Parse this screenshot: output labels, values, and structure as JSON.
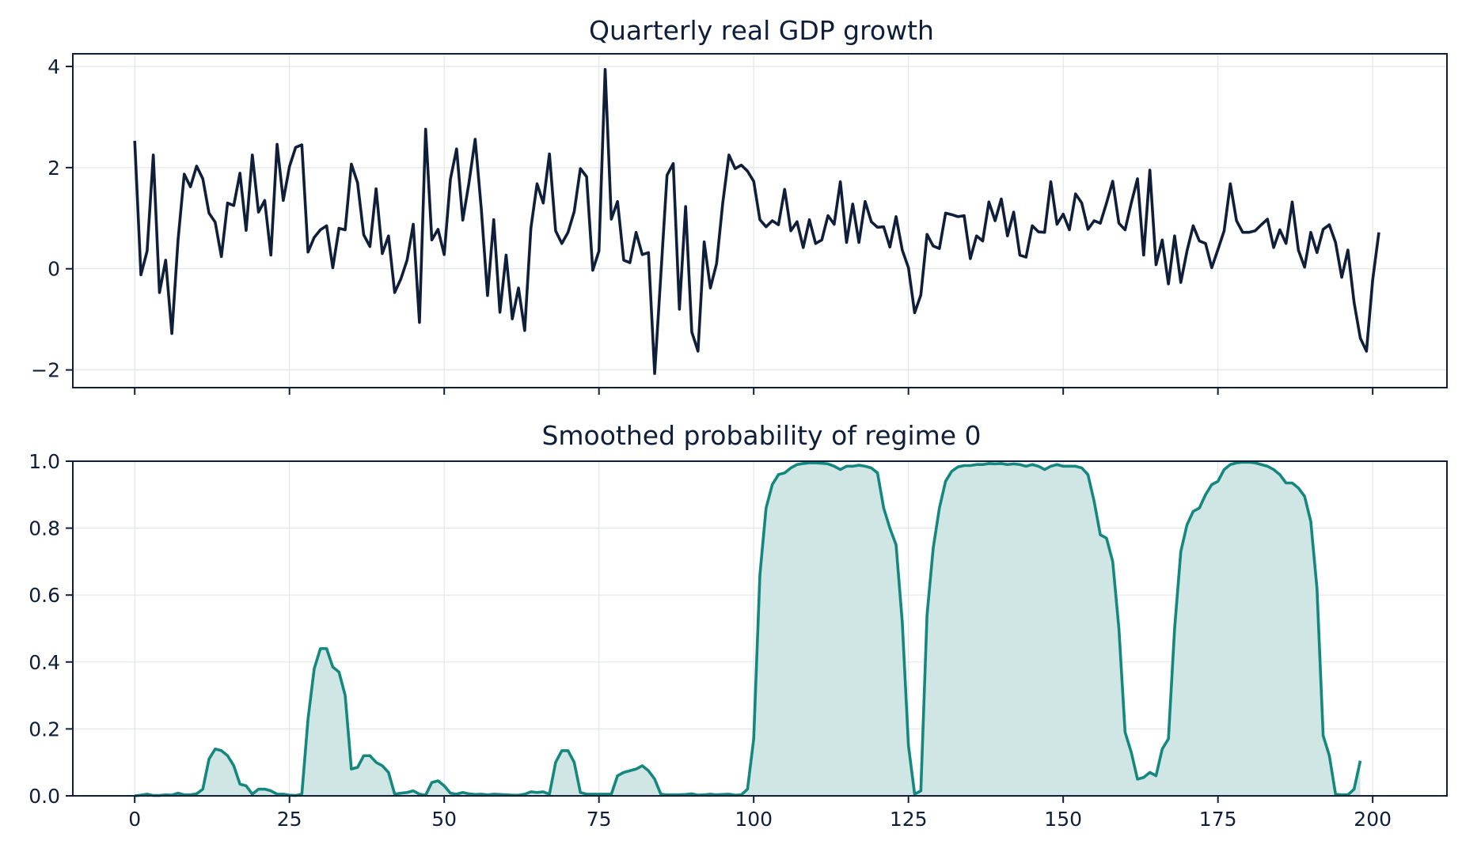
{
  "chart_data": [
    {
      "type": "line",
      "title": "Quarterly real GDP growth",
      "xlabel": "",
      "ylabel": "",
      "xlim": [
        -10,
        212
      ],
      "ylim": [
        -2.35,
        4.25
      ],
      "yticks": [
        -2,
        0,
        2,
        4
      ],
      "ytick_labels": [
        "−2",
        "0",
        "2",
        "4"
      ],
      "xticks": [
        0,
        25,
        50,
        75,
        100,
        125,
        150,
        175,
        200
      ],
      "xtick_labels_visible": false,
      "grid": true,
      "line_color": "#0f1f3a",
      "series": [
        {
          "values": [
            2.53,
            -0.12,
            0.35,
            2.25,
            -0.47,
            0.17,
            -1.28,
            0.57,
            1.87,
            1.62,
            2.03,
            1.78,
            1.1,
            0.92,
            0.24,
            1.3,
            1.25,
            1.89,
            0.76,
            2.25,
            1.12,
            1.35,
            0.27,
            2.46,
            1.35,
            2.02,
            2.4,
            2.45,
            0.33,
            0.62,
            0.77,
            0.85,
            0.02,
            0.8,
            0.77,
            2.07,
            1.7,
            0.67,
            0.44,
            1.58,
            0.3,
            0.65,
            -0.47,
            -0.2,
            0.17,
            0.88,
            -1.06,
            2.76,
            0.57,
            0.78,
            0.28,
            1.77,
            2.37,
            0.96,
            1.7,
            2.56,
            1.17,
            -0.53,
            0.97,
            -0.86,
            0.27,
            -0.99,
            -0.38,
            -1.22,
            0.8,
            1.68,
            1.3,
            2.27,
            0.75,
            0.5,
            0.72,
            1.13,
            1.98,
            1.82,
            -0.03,
            0.35,
            3.94,
            0.98,
            1.33,
            0.17,
            0.12,
            0.72,
            0.28,
            0.32,
            -2.07,
            -0.12,
            1.85,
            2.08,
            -0.8,
            1.23,
            -1.25,
            -1.63,
            0.53,
            -0.38,
            0.1,
            1.3,
            2.25,
            1.98,
            2.05,
            1.93,
            1.73,
            0.97,
            0.83,
            0.95,
            0.87,
            1.57,
            0.75,
            0.93,
            0.42,
            0.97,
            0.5,
            0.57,
            1.05,
            0.88,
            1.72,
            0.52,
            1.28,
            0.52,
            1.33,
            0.93,
            0.82,
            0.83,
            0.43,
            1.03,
            0.37,
            0.02,
            -0.87,
            -0.52,
            0.68,
            0.45,
            0.4,
            1.1,
            1.07,
            1.03,
            1.05,
            0.2,
            0.65,
            0.55,
            1.32,
            0.95,
            1.38,
            0.65,
            1.12,
            0.27,
            0.23,
            0.85,
            0.73,
            0.72,
            1.72,
            0.88,
            1.08,
            0.77,
            1.48,
            1.3,
            0.78,
            0.95,
            0.9,
            1.3,
            1.73,
            0.9,
            0.77,
            1.3,
            1.78,
            0.27,
            1.95,
            0.08,
            0.57,
            -0.3,
            0.65,
            -0.27,
            0.35,
            0.85,
            0.55,
            0.5,
            0.02,
            0.38,
            0.75,
            1.68,
            0.95,
            0.72,
            0.72,
            0.75,
            0.87,
            0.98,
            0.42,
            0.77,
            0.5,
            1.32,
            0.37,
            0.03,
            0.72,
            0.32,
            0.78,
            0.87,
            0.52,
            -0.17,
            0.37,
            -0.67,
            -1.37,
            -1.63,
            -0.22,
            0.72
          ]
        }
      ]
    },
    {
      "type": "area",
      "title": "Smoothed probability of regime 0",
      "xlabel": "",
      "ylabel": "",
      "xlim": [
        -10,
        212
      ],
      "ylim": [
        0.0,
        1.0
      ],
      "yticks": [
        0.0,
        0.2,
        0.4,
        0.6,
        0.8,
        1.0
      ],
      "ytick_labels": [
        "0.0",
        "0.2",
        "0.4",
        "0.6",
        "0.8",
        "1.0"
      ],
      "xticks": [
        0,
        25,
        50,
        75,
        100,
        125,
        150,
        175,
        200
      ],
      "xtick_labels": [
        "0",
        "25",
        "50",
        "75",
        "100",
        "125",
        "150",
        "175",
        "200"
      ],
      "grid": true,
      "line_color": "#14877f",
      "fill_color": "#cfe6e5",
      "series": [
        {
          "values": [
            0.0,
            0.002,
            0.005,
            0.001,
            0.001,
            0.003,
            0.002,
            0.008,
            0.003,
            0.003,
            0.006,
            0.02,
            0.11,
            0.14,
            0.135,
            0.12,
            0.09,
            0.035,
            0.03,
            0.005,
            0.02,
            0.02,
            0.015,
            0.005,
            0.005,
            0.002,
            0.001,
            0.005,
            0.23,
            0.38,
            0.44,
            0.44,
            0.385,
            0.37,
            0.3,
            0.08,
            0.085,
            0.12,
            0.12,
            0.1,
            0.09,
            0.07,
            0.005,
            0.008,
            0.01,
            0.015,
            0.005,
            0.002,
            0.04,
            0.045,
            0.03,
            0.008,
            0.005,
            0.01,
            0.006,
            0.004,
            0.005,
            0.003,
            0.005,
            0.004,
            0.003,
            0.002,
            0.002,
            0.005,
            0.012,
            0.01,
            0.012,
            0.005,
            0.1,
            0.135,
            0.135,
            0.1,
            0.01,
            0.005,
            0.005,
            0.005,
            0.005,
            0.005,
            0.06,
            0.07,
            0.075,
            0.08,
            0.09,
            0.075,
            0.05,
            0.005,
            0.003,
            0.003,
            0.003,
            0.004,
            0.006,
            0.002,
            0.003,
            0.005,
            0.003,
            0.004,
            0.005,
            0.002,
            0.003,
            0.02,
            0.17,
            0.66,
            0.86,
            0.93,
            0.96,
            0.965,
            0.98,
            0.99,
            0.993,
            0.995,
            0.995,
            0.994,
            0.992,
            0.985,
            0.975,
            0.985,
            0.985,
            0.988,
            0.985,
            0.98,
            0.965,
            0.86,
            0.8,
            0.75,
            0.52,
            0.15,
            0.005,
            0.015,
            0.54,
            0.74,
            0.86,
            0.94,
            0.97,
            0.983,
            0.987,
            0.987,
            0.99,
            0.99,
            0.993,
            0.992,
            0.993,
            0.99,
            0.992,
            0.99,
            0.985,
            0.99,
            0.985,
            0.975,
            0.985,
            0.99,
            0.985,
            0.985,
            0.985,
            0.98,
            0.96,
            0.88,
            0.78,
            0.77,
            0.7,
            0.5,
            0.19,
            0.13,
            0.05,
            0.055,
            0.07,
            0.06,
            0.14,
            0.17,
            0.5,
            0.73,
            0.81,
            0.85,
            0.86,
            0.9,
            0.93,
            0.94,
            0.975,
            0.99,
            0.995,
            0.997,
            0.997,
            0.995,
            0.99,
            0.985,
            0.975,
            0.96,
            0.935,
            0.935,
            0.92,
            0.895,
            0.82,
            0.62,
            0.18,
            0.12,
            0.005,
            0.003,
            0.003,
            0.02,
            0.105
          ]
        }
      ]
    }
  ]
}
